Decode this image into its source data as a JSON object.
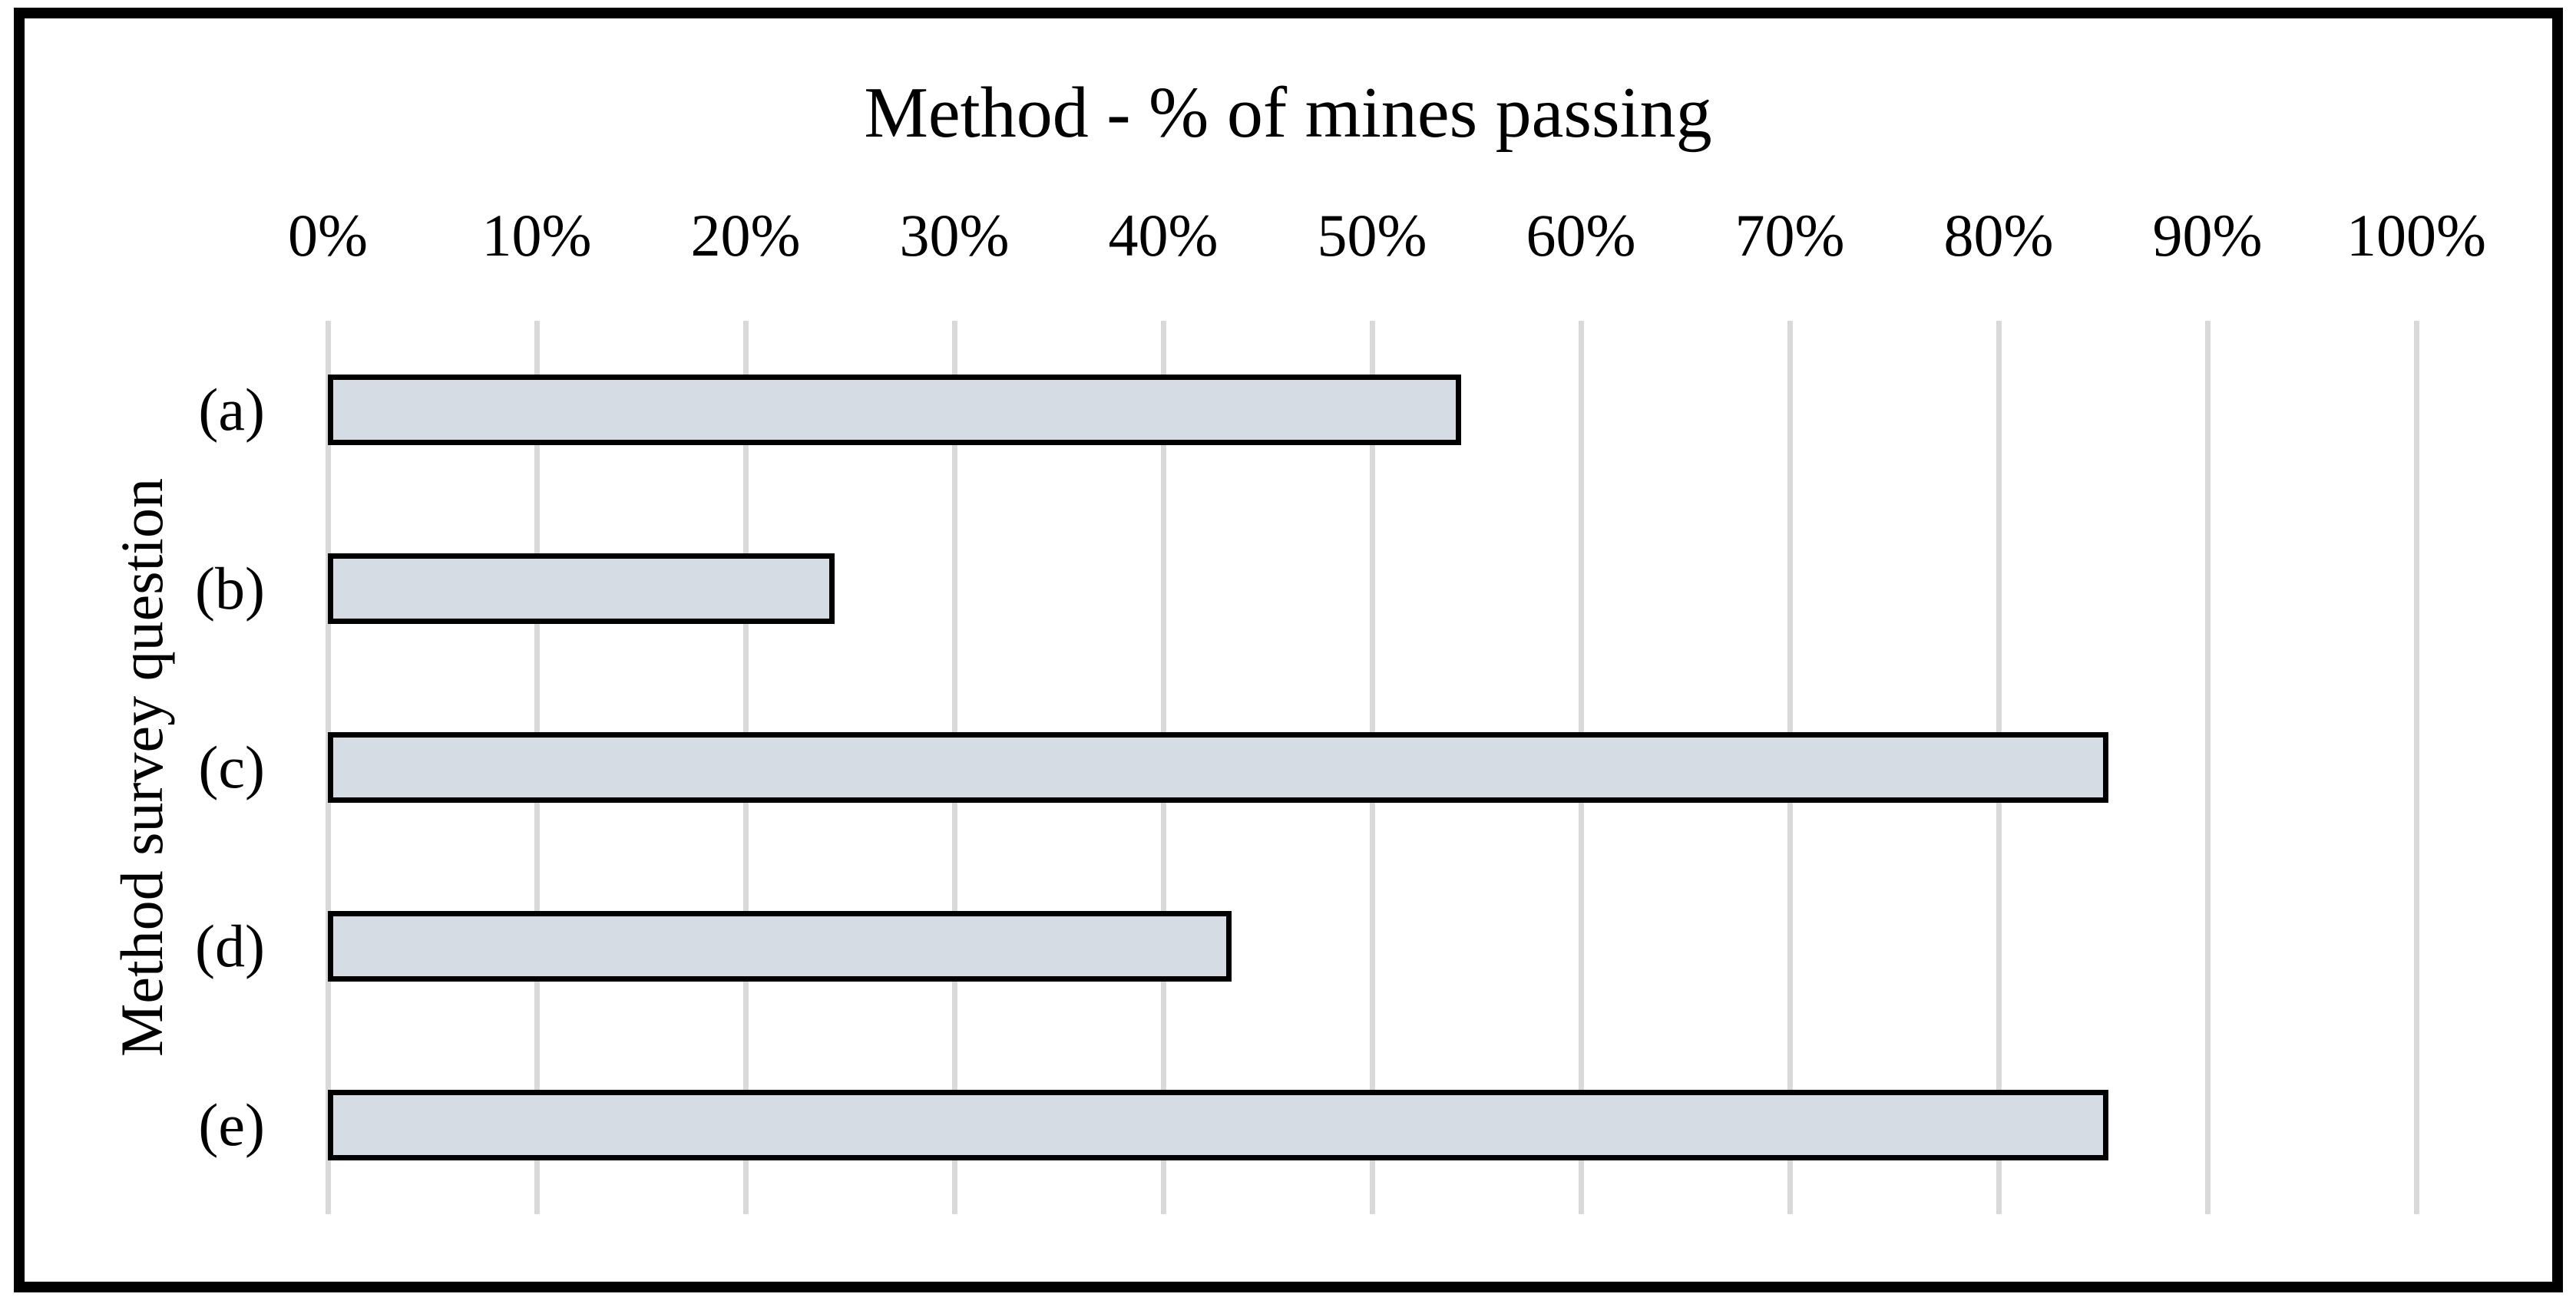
{
  "figure": {
    "type_label": "horizontal-bar-chart",
    "frame_color": "#000000",
    "background_color": "#ffffff"
  },
  "chart_data": {
    "type": "bar",
    "orientation": "horizontal",
    "title": "Method - % of mines passing",
    "xlabel": "",
    "ylabel": "Method survey question",
    "categories": [
      "(a)",
      "(b)",
      "(c)",
      "(d)",
      "(e)"
    ],
    "values": [
      54,
      24,
      85,
      43,
      85
    ],
    "xlim": [
      0,
      100
    ],
    "xtick_labels": [
      "0%",
      "10%",
      "20%",
      "30%",
      "40%",
      "50%",
      "60%",
      "70%",
      "80%",
      "90%",
      "100%"
    ],
    "grid": true,
    "legend": "none",
    "bar_fill_color": "#d6dce4",
    "bar_border_color": "#000000",
    "gridline_color": "#d9d9d9",
    "text_color": "#000000"
  }
}
